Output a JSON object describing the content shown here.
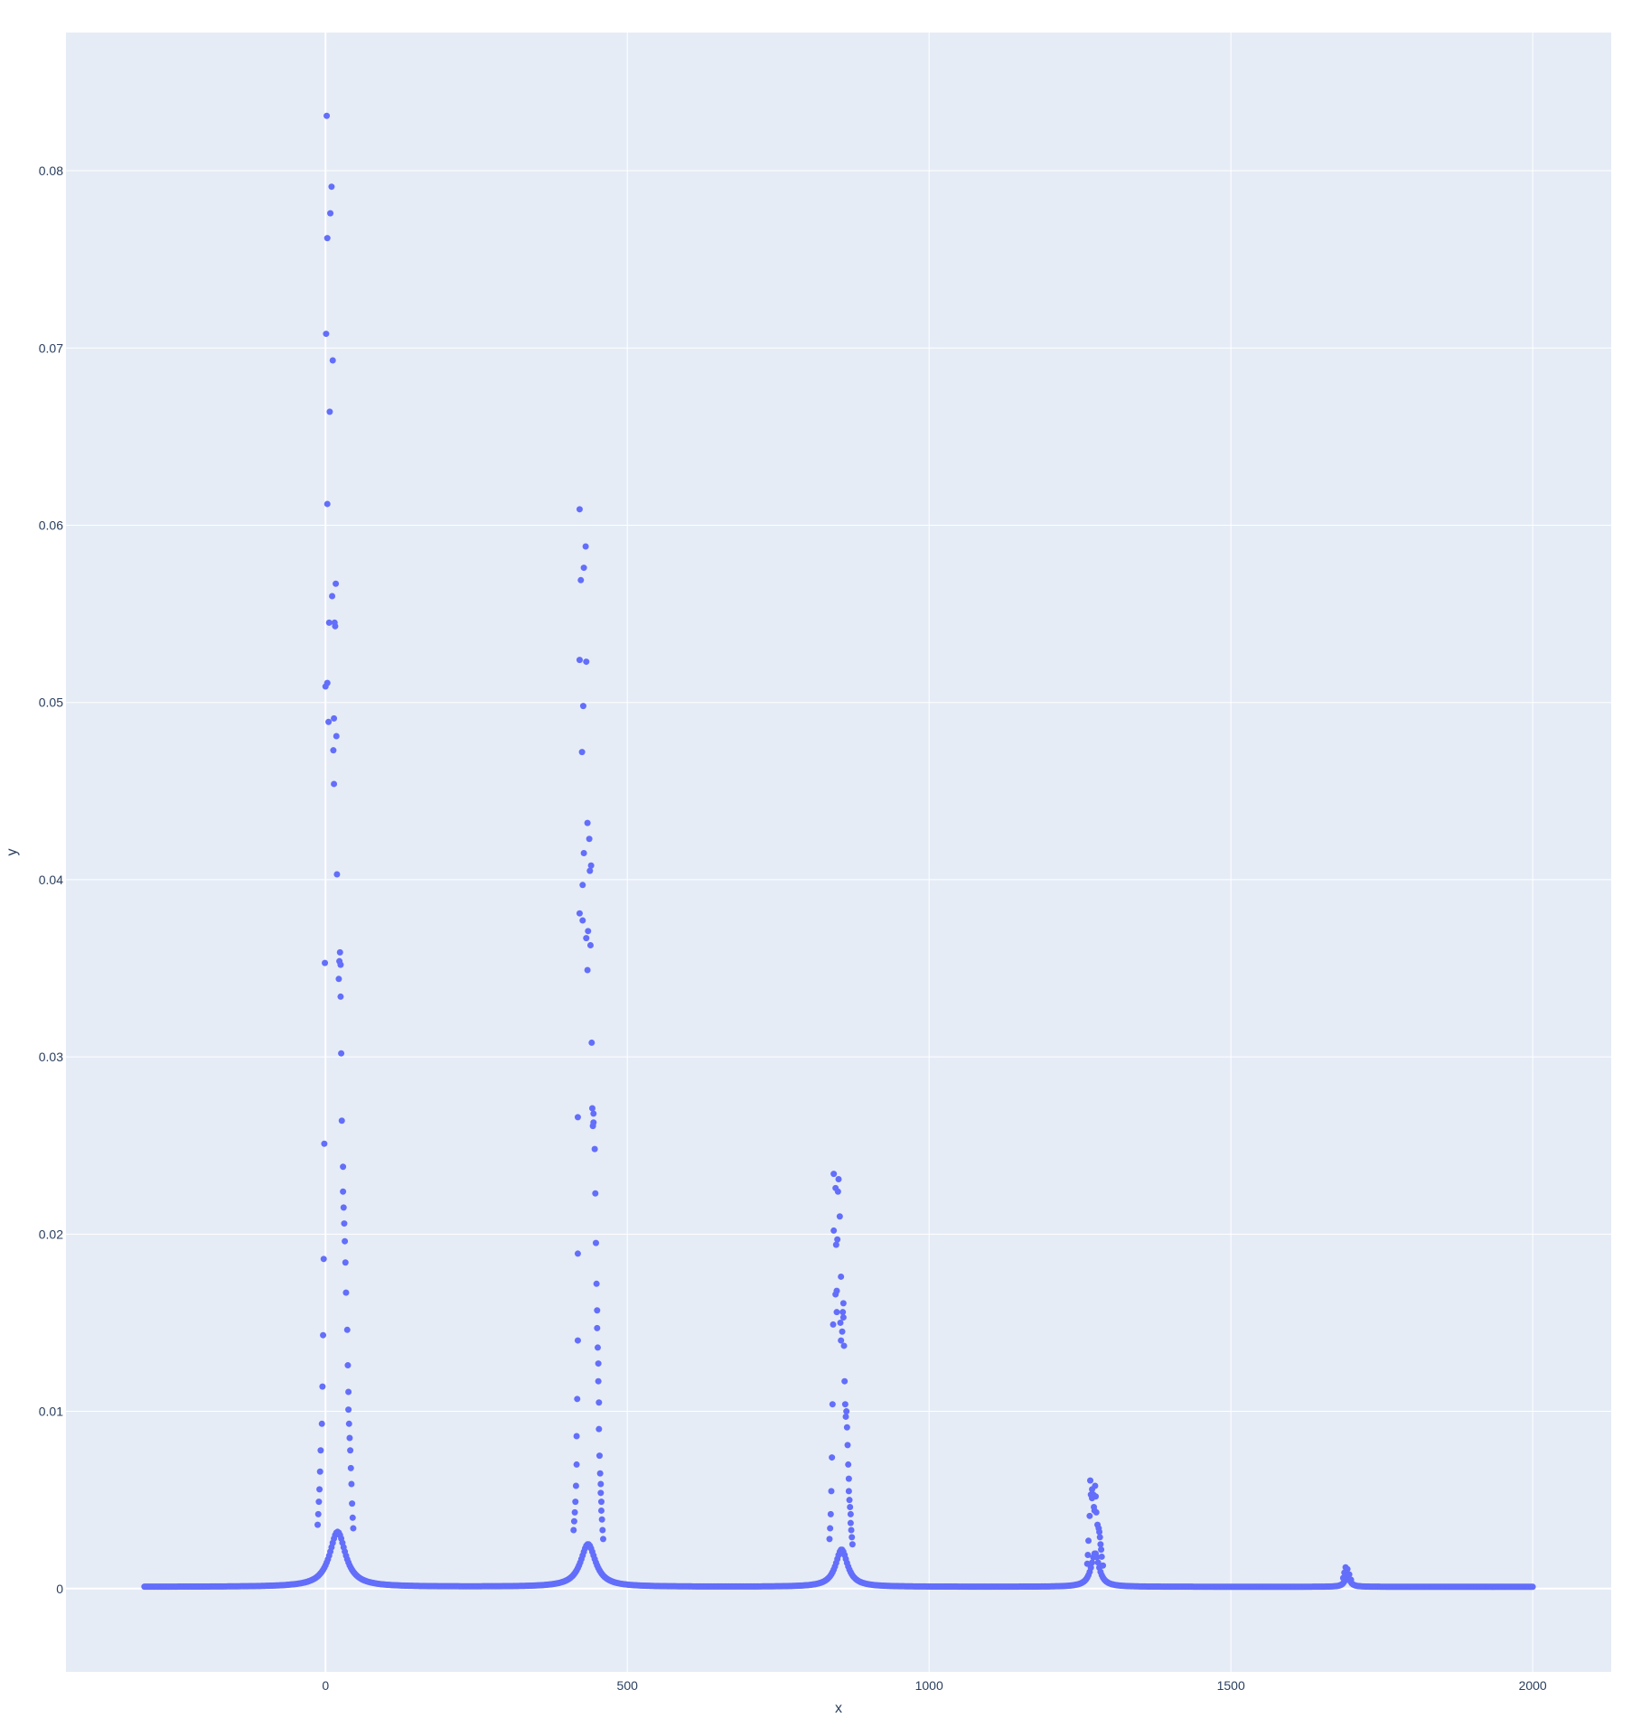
{
  "chart_data": {
    "type": "scatter",
    "xlabel": "x",
    "ylabel": "y",
    "xlim": [
      -430,
      2130
    ],
    "ylim": [
      -0.0047,
      0.0878
    ],
    "x_ticks": [
      0,
      500,
      1000,
      1500,
      2000
    ],
    "x_tick_labels": [
      "0",
      "500",
      "1000",
      "1500",
      "2000"
    ],
    "y_ticks": [
      0,
      0.01,
      0.02,
      0.03,
      0.04,
      0.05,
      0.06,
      0.07,
      0.08
    ],
    "y_tick_labels": [
      "0",
      "0.01",
      "0.02",
      "0.03",
      "0.04",
      "0.05",
      "0.06",
      "0.07",
      "0.08"
    ],
    "grid": true,
    "colors": {
      "marker": "#636efa",
      "plot_bg": "#e5ecf6",
      "grid": "#ffffff",
      "text": "#2a3f5f"
    },
    "x_range_of_data": [
      -300,
      2000
    ],
    "baseline_y": 0.0001,
    "series": [
      {
        "values": [
          {
            "x": 2,
            "y": 0.0831
          },
          {
            "x": 10,
            "y": 0.0791
          },
          {
            "x": 8,
            "y": 0.0776
          },
          {
            "x": 3,
            "y": 0.0762
          },
          {
            "x": 1,
            "y": 0.0708
          },
          {
            "x": 12,
            "y": 0.0693
          },
          {
            "x": 7,
            "y": 0.0664
          },
          {
            "x": 3,
            "y": 0.0612
          },
          {
            "x": 17,
            "y": 0.0567
          },
          {
            "x": 11,
            "y": 0.056
          },
          {
            "x": 6,
            "y": 0.0545
          },
          {
            "x": 15,
            "y": 0.0545
          },
          {
            "x": 16,
            "y": 0.0543
          },
          {
            "x": 3,
            "y": 0.0511
          },
          {
            "x": 0,
            "y": 0.0509
          },
          {
            "x": 14,
            "y": 0.0491
          },
          {
            "x": 5,
            "y": 0.0489
          },
          {
            "x": 18,
            "y": 0.0481
          },
          {
            "x": 13,
            "y": 0.0473
          },
          {
            "x": 14,
            "y": 0.0454
          },
          {
            "x": 19,
            "y": 0.0403
          },
          {
            "x": 24,
            "y": 0.0359
          },
          {
            "x": -1,
            "y": 0.0353
          },
          {
            "x": 23,
            "y": 0.0354
          },
          {
            "x": 25,
            "y": 0.0352
          },
          {
            "x": 22,
            "y": 0.0344
          },
          {
            "x": 25,
            "y": 0.0334
          },
          {
            "x": 26,
            "y": 0.0302
          },
          {
            "x": 27,
            "y": 0.0264
          },
          {
            "x": -2,
            "y": 0.0251
          },
          {
            "x": 29,
            "y": 0.0238
          },
          {
            "x": 29,
            "y": 0.0224
          },
          {
            "x": 30,
            "y": 0.0215
          },
          {
            "x": 31,
            "y": 0.0206
          },
          {
            "x": 32,
            "y": 0.0196
          },
          {
            "x": -3,
            "y": 0.0186
          },
          {
            "x": 33,
            "y": 0.0184
          },
          {
            "x": 34,
            "y": 0.0167
          },
          {
            "x": 36,
            "y": 0.0146
          },
          {
            "x": -4,
            "y": 0.0143
          },
          {
            "x": 37,
            "y": 0.0126
          },
          {
            "x": 38,
            "y": 0.0111
          },
          {
            "x": -5,
            "y": 0.0114
          },
          {
            "x": 38,
            "y": 0.0101
          },
          {
            "x": 39,
            "y": 0.0093
          },
          {
            "x": -6,
            "y": 0.0093
          },
          {
            "x": 40,
            "y": 0.0085
          },
          {
            "x": 41,
            "y": 0.0078
          },
          {
            "x": -8,
            "y": 0.0078
          },
          {
            "x": 42,
            "y": 0.0068
          },
          {
            "x": -9,
            "y": 0.0066
          },
          {
            "x": 43,
            "y": 0.0059
          },
          {
            "x": -10,
            "y": 0.0056
          },
          {
            "x": 44,
            "y": 0.0048
          },
          {
            "x": -11,
            "y": 0.0049
          },
          {
            "x": 45,
            "y": 0.004
          },
          {
            "x": -12,
            "y": 0.0042
          },
          {
            "x": 46,
            "y": 0.0034
          },
          {
            "x": -13,
            "y": 0.0036
          },
          {
            "x": 421,
            "y": 0.0609
          },
          {
            "x": 431,
            "y": 0.0588
          },
          {
            "x": 428,
            "y": 0.0576
          },
          {
            "x": 423,
            "y": 0.0569
          },
          {
            "x": 421,
            "y": 0.0524
          },
          {
            "x": 432,
            "y": 0.0523
          },
          {
            "x": 427,
            "y": 0.0498
          },
          {
            "x": 425,
            "y": 0.0472
          },
          {
            "x": 434,
            "y": 0.0432
          },
          {
            "x": 437,
            "y": 0.0423
          },
          {
            "x": 428,
            "y": 0.0415
          },
          {
            "x": 440,
            "y": 0.0408
          },
          {
            "x": 438,
            "y": 0.0405
          },
          {
            "x": 426,
            "y": 0.0397
          },
          {
            "x": 421,
            "y": 0.0381
          },
          {
            "x": 426,
            "y": 0.0377
          },
          {
            "x": 435,
            "y": 0.0371
          },
          {
            "x": 432,
            "y": 0.0367
          },
          {
            "x": 439,
            "y": 0.0363
          },
          {
            "x": 434,
            "y": 0.0349
          },
          {
            "x": 441,
            "y": 0.0308
          },
          {
            "x": 442,
            "y": 0.0271
          },
          {
            "x": 444,
            "y": 0.0268
          },
          {
            "x": 418,
            "y": 0.0266
          },
          {
            "x": 444,
            "y": 0.0263
          },
          {
            "x": 443,
            "y": 0.0261
          },
          {
            "x": 446,
            "y": 0.0248
          },
          {
            "x": 447,
            "y": 0.0223
          },
          {
            "x": 448,
            "y": 0.0195
          },
          {
            "x": 418,
            "y": 0.0189
          },
          {
            "x": 449,
            "y": 0.0172
          },
          {
            "x": 450,
            "y": 0.0157
          },
          {
            "x": 450,
            "y": 0.0147
          },
          {
            "x": 418,
            "y": 0.014
          },
          {
            "x": 451,
            "y": 0.0136
          },
          {
            "x": 452,
            "y": 0.0127
          },
          {
            "x": 452,
            "y": 0.0117
          },
          {
            "x": 417,
            "y": 0.0107
          },
          {
            "x": 453,
            "y": 0.0105
          },
          {
            "x": 453,
            "y": 0.009
          },
          {
            "x": 416,
            "y": 0.0086
          },
          {
            "x": 454,
            "y": 0.0075
          },
          {
            "x": 416,
            "y": 0.007
          },
          {
            "x": 455,
            "y": 0.0065
          },
          {
            "x": 415,
            "y": 0.0058
          },
          {
            "x": 456,
            "y": 0.0059
          },
          {
            "x": 456,
            "y": 0.0054
          },
          {
            "x": 414,
            "y": 0.0049
          },
          {
            "x": 457,
            "y": 0.0049
          },
          {
            "x": 457,
            "y": 0.0044
          },
          {
            "x": 413,
            "y": 0.0043
          },
          {
            "x": 458,
            "y": 0.0039
          },
          {
            "x": 412,
            "y": 0.0038
          },
          {
            "x": 459,
            "y": 0.0033
          },
          {
            "x": 411,
            "y": 0.0033
          },
          {
            "x": 460,
            "y": 0.0028
          },
          {
            "x": 842,
            "y": 0.0234
          },
          {
            "x": 850,
            "y": 0.0231
          },
          {
            "x": 845,
            "y": 0.0226
          },
          {
            "x": 849,
            "y": 0.0224
          },
          {
            "x": 852,
            "y": 0.021
          },
          {
            "x": 842,
            "y": 0.0202
          },
          {
            "x": 848,
            "y": 0.0197
          },
          {
            "x": 846,
            "y": 0.0194
          },
          {
            "x": 854,
            "y": 0.0176
          },
          {
            "x": 847,
            "y": 0.0168
          },
          {
            "x": 845,
            "y": 0.0166
          },
          {
            "x": 858,
            "y": 0.0161
          },
          {
            "x": 847,
            "y": 0.0156
          },
          {
            "x": 857,
            "y": 0.0156
          },
          {
            "x": 858,
            "y": 0.0153
          },
          {
            "x": 853,
            "y": 0.015
          },
          {
            "x": 841,
            "y": 0.0149
          },
          {
            "x": 856,
            "y": 0.0145
          },
          {
            "x": 854,
            "y": 0.014
          },
          {
            "x": 859,
            "y": 0.0137
          },
          {
            "x": 860,
            "y": 0.0117
          },
          {
            "x": 840,
            "y": 0.0104
          },
          {
            "x": 861,
            "y": 0.0104
          },
          {
            "x": 863,
            "y": 0.01
          },
          {
            "x": 862,
            "y": 0.0097
          },
          {
            "x": 864,
            "y": 0.0091
          },
          {
            "x": 865,
            "y": 0.0081
          },
          {
            "x": 839,
            "y": 0.0074
          },
          {
            "x": 866,
            "y": 0.007
          },
          {
            "x": 867,
            "y": 0.0062
          },
          {
            "x": 838,
            "y": 0.0055
          },
          {
            "x": 867,
            "y": 0.0055
          },
          {
            "x": 868,
            "y": 0.005
          },
          {
            "x": 869,
            "y": 0.0046
          },
          {
            "x": 837,
            "y": 0.0042
          },
          {
            "x": 870,
            "y": 0.0042
          },
          {
            "x": 870,
            "y": 0.0037
          },
          {
            "x": 836,
            "y": 0.0034
          },
          {
            "x": 871,
            "y": 0.0033
          },
          {
            "x": 835,
            "y": 0.0028
          },
          {
            "x": 872,
            "y": 0.0029
          },
          {
            "x": 873,
            "y": 0.0025
          },
          {
            "x": 1267,
            "y": 0.0061
          },
          {
            "x": 1275,
            "y": 0.0058
          },
          {
            "x": 1270,
            "y": 0.0056
          },
          {
            "x": 1268,
            "y": 0.0053
          },
          {
            "x": 1272,
            "y": 0.0053
          },
          {
            "x": 1276,
            "y": 0.0052
          },
          {
            "x": 1270,
            "y": 0.0051
          },
          {
            "x": 1273,
            "y": 0.0046
          },
          {
            "x": 1274,
            "y": 0.0044
          },
          {
            "x": 1277,
            "y": 0.0043
          },
          {
            "x": 1266,
            "y": 0.0041
          },
          {
            "x": 1279,
            "y": 0.0036
          },
          {
            "x": 1281,
            "y": 0.0034
          },
          {
            "x": 1282,
            "y": 0.0032
          },
          {
            "x": 1283,
            "y": 0.0029
          },
          {
            "x": 1264,
            "y": 0.0027
          },
          {
            "x": 1284,
            "y": 0.0025
          },
          {
            "x": 1285,
            "y": 0.0022
          },
          {
            "x": 1263,
            "y": 0.0019
          },
          {
            "x": 1286,
            "y": 0.0018
          },
          {
            "x": 1262,
            "y": 0.0014
          },
          {
            "x": 1288,
            "y": 0.0013
          },
          {
            "x": 1690,
            "y": 0.0012
          },
          {
            "x": 1693,
            "y": 0.0011
          },
          {
            "x": 1688,
            "y": 0.0009
          },
          {
            "x": 1696,
            "y": 0.0008
          },
          {
            "x": 1686,
            "y": 0.0006
          },
          {
            "x": 1699,
            "y": 0.0005
          }
        ]
      }
    ],
    "peaks": [
      {
        "center": 20,
        "height": 0.0031,
        "width": 16
      },
      {
        "center": 435,
        "height": 0.0024,
        "width": 15
      },
      {
        "center": 855,
        "height": 0.0021,
        "width": 12
      },
      {
        "center": 1275,
        "height": 0.0019,
        "width": 8
      },
      {
        "center": 1693,
        "height": 0.0006,
        "width": 5
      }
    ]
  }
}
